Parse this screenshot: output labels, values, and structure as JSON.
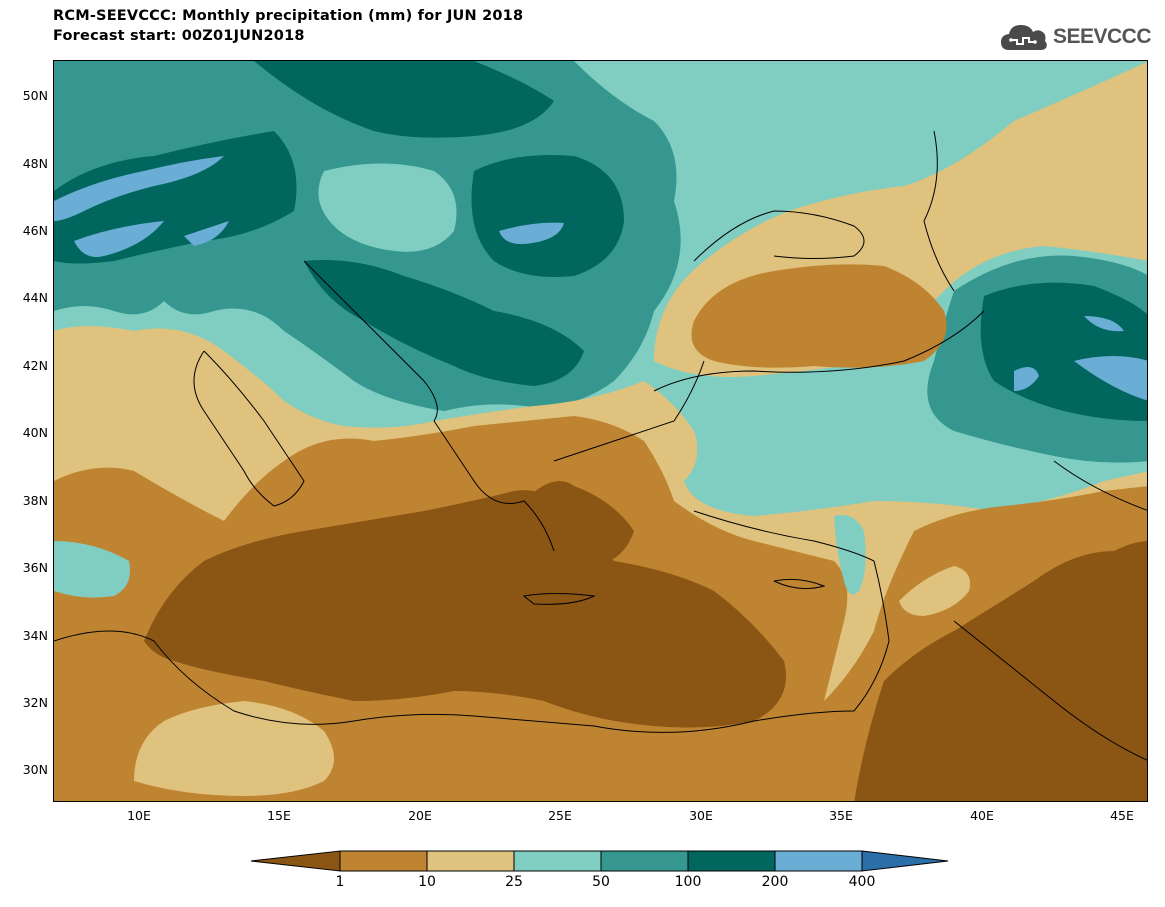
{
  "header": {
    "title_line1": "RCM-SEEVCCC: Monthly precipitation (mm) for JUN 2018",
    "title_line2": "Forecast start: 00Z01JUN2018",
    "logo_text": "SEEVCCC",
    "logo_icon": "cloud-icon"
  },
  "axes": {
    "lat_labels": [
      "50N",
      "48N",
      "46N",
      "44N",
      "42N",
      "40N",
      "38N",
      "36N",
      "34N",
      "32N",
      "30N"
    ],
    "lon_labels": [
      "10E",
      "15E",
      "20E",
      "25E",
      "30E",
      "35E",
      "40E",
      "45E"
    ]
  },
  "legend": {
    "unit": "mm",
    "labels": [
      "1",
      "10",
      "25",
      "50",
      "100",
      "200",
      "400"
    ],
    "colors": [
      "#8b5514",
      "#bf8431",
      "#dfc27d",
      "#80cdc1",
      "#35978f",
      "#01665e",
      "#6aaed6",
      "#2b6ea8"
    ]
  },
  "map": {
    "lon_range": [
      7,
      46
    ],
    "lat_range": [
      29,
      51
    ]
  }
}
